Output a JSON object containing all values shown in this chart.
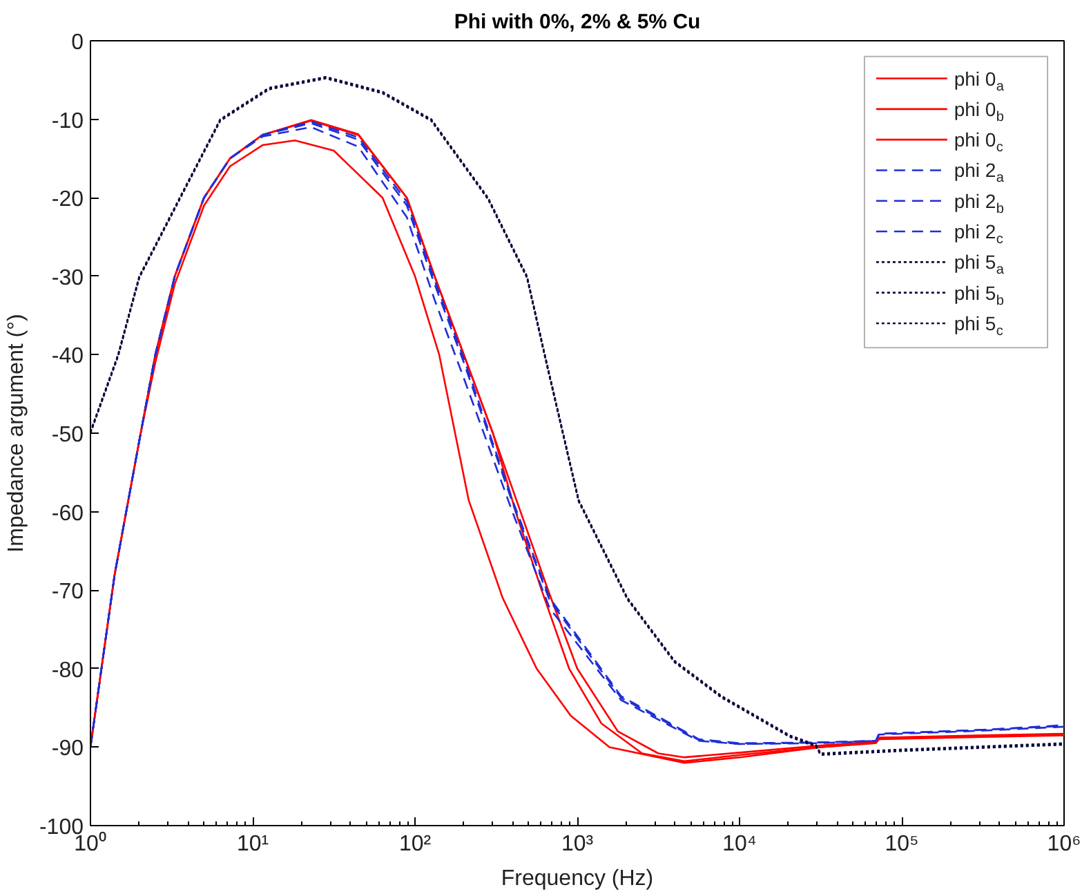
{
  "chart_data": {
    "type": "line",
    "title": "Phi with 0%, 2% & 5% Cu",
    "xlabel": "Frequency (Hz)",
    "ylabel": "Impedance argument (°)",
    "log": "x",
    "xlim": [
      1,
      1000000
    ],
    "ylim": [
      -100,
      0
    ],
    "xticks": [
      {
        "value": 1,
        "label": "10⁰"
      },
      {
        "value": 10,
        "label": "10¹"
      },
      {
        "value": 100,
        "label": "10²"
      },
      {
        "value": 1000,
        "label": "10³"
      },
      {
        "value": 10000,
        "label": "10⁴"
      },
      {
        "value": 100000,
        "label": "10⁵"
      },
      {
        "value": 1000000,
        "label": "10⁶"
      }
    ],
    "yticks": [
      -100,
      -90,
      -80,
      -70,
      -60,
      -50,
      -40,
      -30,
      -20,
      -10,
      0
    ],
    "grid": false,
    "legend": "top right",
    "marker": "none",
    "series": [
      {
        "name": "phi 0$_{a}$",
        "color": "#ff0000",
        "line_style": "solid",
        "x": [
          1,
          1.41,
          2.04,
          2.51,
          3.31,
          5.01,
          7.24,
          11.5,
          22.9,
          44.7,
          89.1,
          132,
          200,
          302,
          417,
          603,
          891,
          1410,
          2510,
          4570,
          10000,
          31600,
          69200,
          72400,
          316000,
          1000000
        ],
        "values": [
          -90,
          -68,
          -50,
          -40,
          -30,
          -20,
          -15,
          -12,
          -10.2,
          -12,
          -20,
          -30,
          -40,
          -50,
          -60,
          -70,
          -80,
          -87,
          -90.8,
          -91.8,
          -91,
          -90,
          -89.4,
          -88.8,
          -88.6,
          -88.4
        ]
      },
      {
        "name": "phi 0$_{b}$",
        "color": "#ff0000",
        "line_style": "solid",
        "x": [
          1,
          1.41,
          2.04,
          2.51,
          3.31,
          5.01,
          7.24,
          11.5,
          22.9,
          44.7,
          89.1,
          132,
          200,
          302,
          447,
          661,
          1000,
          1780,
          3160,
          4570,
          10000,
          31600,
          69200,
          72400,
          316000,
          1000000
        ],
        "values": [
          -90,
          -68,
          -50,
          -40,
          -30,
          -20,
          -15,
          -12,
          -10.1,
          -11.9,
          -20,
          -30,
          -40,
          -50,
          -60,
          -70,
          -80,
          -88,
          -90.8,
          -91.3,
          -90.7,
          -89.8,
          -89.3,
          -88.8,
          -88.5,
          -88.3
        ]
      },
      {
        "name": "phi 0$_{c}$",
        "color": "#ff0000",
        "line_style": "solid",
        "x": [
          1,
          1.41,
          2.04,
          2.51,
          3.31,
          5.01,
          7.24,
          11.5,
          18.2,
          31.6,
          63.1,
          100,
          141,
          214,
          347,
          562,
          912,
          1580,
          4570,
          10000,
          31600,
          69200,
          72400,
          316000,
          1000000
        ],
        "values": [
          -90,
          -68,
          -50,
          -41,
          -31,
          -21,
          -16,
          -13.3,
          -12.7,
          -14,
          -20,
          -30,
          -40,
          -58.5,
          -71,
          -80,
          -86,
          -90,
          -92,
          -91.3,
          -90,
          -89.5,
          -89,
          -88.7,
          -88.5
        ]
      },
      {
        "name": "phi 2$_{a}$",
        "color": "#1f2fd6",
        "line_style": "dashed",
        "x": [
          1,
          1.41,
          2.04,
          2.51,
          3.31,
          5.01,
          7.24,
          11.5,
          22.9,
          44.7,
          89.1,
          132,
          200,
          398,
          676,
          1860,
          5620,
          10000,
          31600,
          69200,
          72400,
          316000,
          1000000
        ],
        "values": [
          -90,
          -68,
          -50,
          -40,
          -30,
          -20,
          -15,
          -12,
          -10.3,
          -12.3,
          -20.5,
          -30.5,
          -40.5,
          -58.5,
          -71,
          -83.5,
          -89,
          -89.5,
          -89.4,
          -89.2,
          -88.3,
          -87.8,
          -87.3
        ]
      },
      {
        "name": "phi 2$_{b}$",
        "color": "#1f2fd6",
        "line_style": "dashed",
        "x": [
          1,
          1.41,
          2.04,
          2.51,
          3.31,
          5.01,
          7.24,
          11.5,
          22.9,
          44.7,
          89.1,
          132,
          200,
          398,
          676,
          1860,
          5620,
          10000,
          31600,
          69200,
          72400,
          316000,
          1000000
        ],
        "values": [
          -90,
          -68,
          -50,
          -40,
          -30,
          -20,
          -15,
          -12,
          -10.5,
          -12.6,
          -21,
          -31,
          -41,
          -58.8,
          -71.3,
          -83.7,
          -89.1,
          -89.6,
          -89.4,
          -89.2,
          -88.3,
          -87.8,
          -87.2
        ]
      },
      {
        "name": "phi 2$_{c}$",
        "color": "#1f2fd6",
        "line_style": "dashed",
        "x": [
          1,
          1.41,
          2.04,
          2.51,
          3.31,
          5.01,
          7.24,
          11.5,
          22.9,
          44.7,
          89.1,
          132,
          200,
          398,
          676,
          1860,
          5620,
          10000,
          31600,
          69200,
          72400,
          316000,
          1000000
        ],
        "values": [
          -90,
          -68,
          -50,
          -40,
          -30,
          -20,
          -15,
          -12.2,
          -11,
          -13.5,
          -22.5,
          -33,
          -43,
          -60,
          -72.3,
          -84,
          -89.2,
          -89.6,
          -89.5,
          -89.2,
          -88.4,
          -87.9,
          -87.4
        ]
      },
      {
        "name": "phi 5$_{a}$",
        "color": "#0a0a3c",
        "line_style": "dotted",
        "x": [
          1,
          1.48,
          2,
          3.55,
          6.31,
          12.6,
          28.2,
          63.1,
          126,
          282,
          490,
          631,
          1020,
          2040,
          3980,
          7760,
          20400,
          29500,
          31600,
          100000,
          316000,
          1000000
        ],
        "values": [
          -49.8,
          -40,
          -30,
          -20,
          -10,
          -6,
          -4.6,
          -6.5,
          -10,
          -20,
          -30,
          -40,
          -58.5,
          -71,
          -79,
          -83.5,
          -88.5,
          -89.7,
          -90.8,
          -90.3,
          -89.9,
          -89.5
        ]
      },
      {
        "name": "phi 5$_{b}$",
        "color": "#0a0a3c",
        "line_style": "dotted",
        "x": [
          1,
          1.48,
          2,
          3.55,
          6.31,
          12.6,
          28.2,
          63.1,
          126,
          282,
          490,
          631,
          1020,
          2040,
          3980,
          7760,
          20400,
          29500,
          31600,
          100000,
          316000,
          1000000
        ],
        "values": [
          -49.9,
          -40.1,
          -30.1,
          -20.1,
          -10.1,
          -6.1,
          -4.7,
          -6.6,
          -10.1,
          -20.1,
          -30.1,
          -40.1,
          -58.6,
          -71.1,
          -79.1,
          -83.6,
          -88.6,
          -89.8,
          -90.9,
          -90.4,
          -90,
          -89.6
        ]
      },
      {
        "name": "phi 5$_{c}$",
        "color": "#0a0a3c",
        "line_style": "dotted",
        "x": [
          1,
          1.48,
          2,
          3.55,
          6.31,
          12.6,
          28.2,
          63.1,
          126,
          282,
          490,
          631,
          1020,
          2040,
          3980,
          7760,
          20400,
          29500,
          31600,
          100000,
          316000,
          1000000
        ],
        "values": [
          -50,
          -40.2,
          -30.2,
          -20.2,
          -10.2,
          -6.2,
          -4.8,
          -6.7,
          -10.2,
          -20.2,
          -30.2,
          -40.2,
          -58.7,
          -71.2,
          -79.2,
          -83.7,
          -88.7,
          -89.9,
          -91,
          -90.5,
          -90.1,
          -89.7
        ]
      }
    ]
  }
}
